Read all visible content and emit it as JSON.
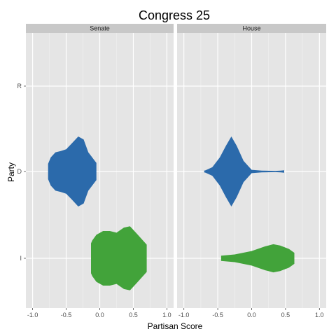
{
  "chart_data": {
    "type": "violin",
    "title": "Congress 25",
    "xlabel": "Partisan Score",
    "ylabel": "Party",
    "xlim": [
      -1.1,
      1.1
    ],
    "x_ticks": [
      -1.0,
      -0.5,
      0.0,
      0.5,
      1.0
    ],
    "x_tick_labels": [
      "-1.0",
      "-0.5",
      "0.0",
      "0.5",
      "1.0"
    ],
    "categories": [
      "I",
      "D",
      "R"
    ],
    "grid": true,
    "colors": {
      "D": "#2b6aab",
      "I": "#42a33a",
      "panel": "#e5e5e5",
      "grid": "#ffffff",
      "strip": "#c8c8c8"
    },
    "panels": [
      {
        "name": "Senate",
        "violins": [
          {
            "party": "D",
            "color": "#2b6aab",
            "profile": [
              [
                -0.77,
                0.13
              ],
              [
                -0.77,
                0.18
              ],
              [
                -0.73,
                0.33
              ],
              [
                -0.66,
                0.45
              ],
              [
                -0.58,
                0.48
              ],
              [
                -0.5,
                0.52
              ],
              [
                -0.42,
                0.65
              ],
              [
                -0.32,
                0.82
              ],
              [
                -0.24,
                0.75
              ],
              [
                -0.17,
                0.45
              ],
              [
                -0.05,
                0.2
              ],
              [
                -0.05,
                0.18
              ]
            ]
          },
          {
            "party": "I",
            "color": "#42a33a",
            "profile": [
              [
                -0.13,
                0.35
              ],
              [
                -0.11,
                0.42
              ],
              [
                -0.05,
                0.55
              ],
              [
                0.05,
                0.64
              ],
              [
                0.15,
                0.64
              ],
              [
                0.25,
                0.6
              ],
              [
                0.36,
                0.72
              ],
              [
                0.45,
                0.75
              ],
              [
                0.55,
                0.58
              ],
              [
                0.7,
                0.32
              ],
              [
                0.7,
                0.3
              ]
            ]
          }
        ]
      },
      {
        "name": "House",
        "violins": [
          {
            "party": "D",
            "color": "#2b6aab",
            "profile": [
              [
                -0.7,
                0.02
              ],
              [
                -0.68,
                0.03
              ],
              [
                -0.58,
                0.1
              ],
              [
                -0.47,
                0.33
              ],
              [
                -0.38,
                0.6
              ],
              [
                -0.3,
                0.82
              ],
              [
                -0.22,
                0.6
              ],
              [
                -0.12,
                0.25
              ],
              [
                0.0,
                0.04
              ],
              [
                0.15,
                0.02
              ],
              [
                0.35,
                0.015
              ],
              [
                0.43,
                0.02
              ],
              [
                0.48,
                0.03
              ]
            ]
          },
          {
            "party": "I",
            "color": "#42a33a",
            "profile": [
              [
                -0.45,
                0.05
              ],
              [
                -0.45,
                0.06
              ],
              [
                -0.25,
                0.09
              ],
              [
                0.0,
                0.17
              ],
              [
                0.2,
                0.28
              ],
              [
                0.32,
                0.33
              ],
              [
                0.42,
                0.3
              ],
              [
                0.55,
                0.22
              ],
              [
                0.63,
                0.13
              ],
              [
                0.63,
                0.12
              ]
            ]
          }
        ]
      }
    ]
  }
}
